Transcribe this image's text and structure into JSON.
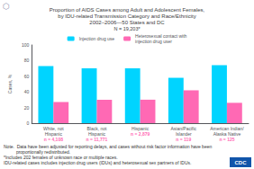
{
  "chart_data": {
    "type": "bar",
    "title": "Proportion of AIDS Cases among Adult and Adolescent Females,\nby IDU-related Transmission Category and Race/Ethnicity\n2002–2006—50 States and DC",
    "subtitle": "N = 19,203*",
    "categories": [
      "White, not\nHispanic",
      "Black, not\nHispanic",
      "Hispanic",
      "Asian/Pacific\nIslander",
      "American Indian/\nAlaska Native"
    ],
    "n_labels": [
      "n = 4,108",
      "n = 11,771",
      "n = 2,879",
      "n = 119",
      "n = 125"
    ],
    "n_labels_color": "#FF69B4",
    "series": [
      {
        "name": "Injection drug use",
        "color": "#00D4FF",
        "values": [
          73,
          70,
          70,
          58,
          74
        ]
      },
      {
        "name": "Heterosexual contact with\ninjection drug user",
        "color": "#FF69B4",
        "values": [
          27,
          30,
          30,
          42,
          26
        ]
      }
    ],
    "ylabel": "Cases, %",
    "ylim": [
      0,
      100
    ],
    "yticks": [
      0,
      20,
      40,
      60,
      80,
      100
    ],
    "grid": false,
    "legend": "top",
    "notes": [
      "Note.  Data have been adjusted for reporting delays, and cases without risk factor information have been",
      "          proportionally redistributed.",
      "*Includes 202 females of unknown race or multiple races.",
      "IDU-related cases includes injection drug users (IDUs) and heterosexual sex partners of IDUs."
    ],
    "annotations": [
      "⬡",
      "CDC"
    ]
  }
}
